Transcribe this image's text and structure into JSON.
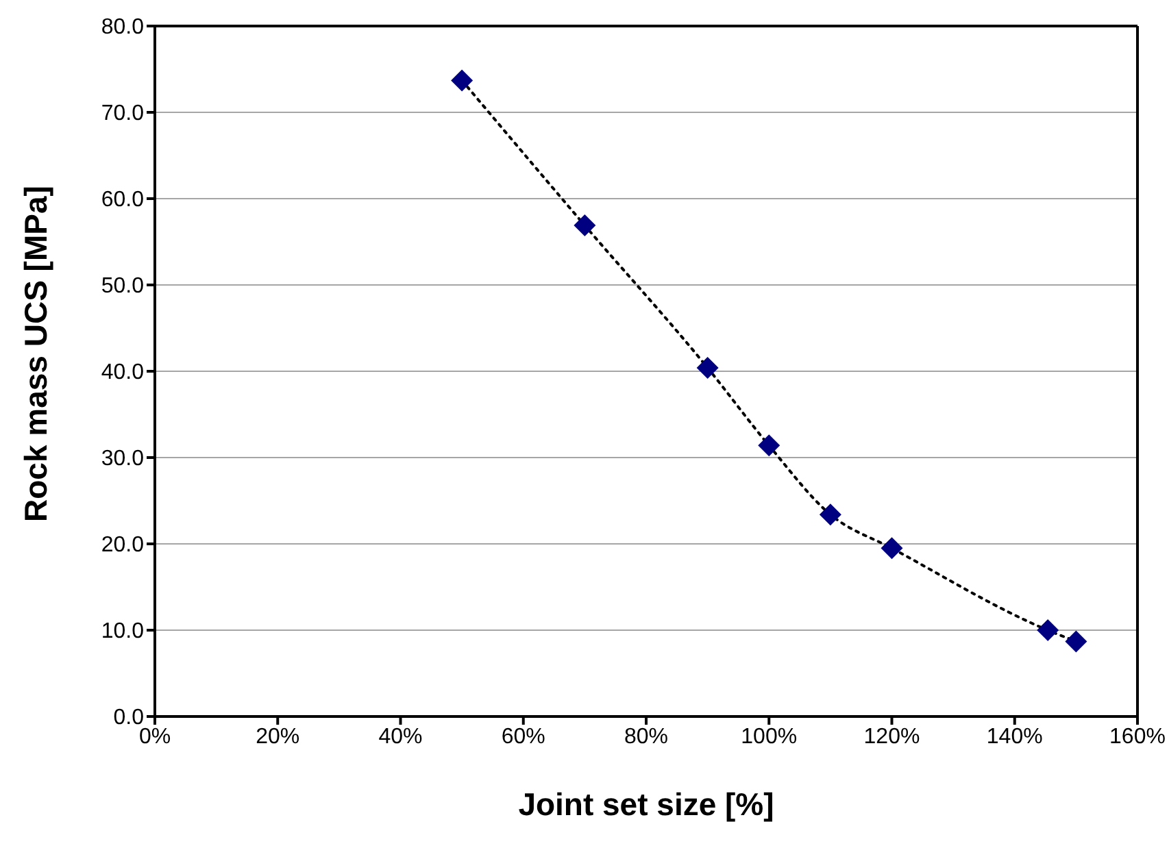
{
  "chart_data": {
    "type": "scatter",
    "xlabel": "Joint set size [%]",
    "ylabel": "Rock mass UCS [MPa]",
    "xlim": [
      0,
      160
    ],
    "xticks": [
      {
        "value": 0,
        "label": "0%"
      },
      {
        "value": 20,
        "label": "20%"
      },
      {
        "value": 40,
        "label": "40%"
      },
      {
        "value": 60,
        "label": "60%"
      },
      {
        "value": 80,
        "label": "80%"
      },
      {
        "value": 100,
        "label": "100%"
      },
      {
        "value": 120,
        "label": "120%"
      },
      {
        "value": 140,
        "label": "140%"
      },
      {
        "value": 160,
        "label": "160%"
      }
    ],
    "ylim": [
      0,
      80
    ],
    "yticks": [
      {
        "value": 0,
        "label": "0.0"
      },
      {
        "value": 10,
        "label": "10.0"
      },
      {
        "value": 20,
        "label": "20.0"
      },
      {
        "value": 30,
        "label": "30.0"
      },
      {
        "value": 40,
        "label": "40.0"
      },
      {
        "value": 50,
        "label": "50.0"
      },
      {
        "value": 60,
        "label": "60.0"
      },
      {
        "value": 70,
        "label": "70.0"
      },
      {
        "value": 80,
        "label": "80.0"
      }
    ],
    "grid": "y",
    "series": [
      {
        "type": "line",
        "color": "#000000",
        "line_style": "dotted",
        "marker": "none",
        "x": [
          50,
          70,
          90,
          100,
          110,
          120,
          145.4,
          150
        ],
        "values": [
          73.7,
          56.9,
          40.4,
          31.4,
          23.4,
          19.5,
          10.0,
          8.7
        ]
      },
      {
        "color": "#000080",
        "marker": "diamond",
        "x": [
          50,
          70,
          90,
          100,
          110,
          120,
          145.4,
          150
        ],
        "values": [
          73.7,
          56.9,
          40.4,
          31.4,
          23.4,
          19.5,
          10.0,
          8.7
        ]
      }
    ]
  }
}
